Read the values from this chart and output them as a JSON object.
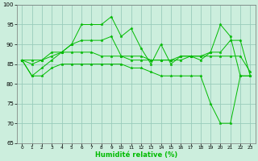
{
  "xlabel": "Humidité relative (%)",
  "background_color": "#cceedd",
  "grid_color": "#99ccbb",
  "line_color": "#00bb00",
  "x": [
    0,
    1,
    2,
    3,
    4,
    5,
    6,
    7,
    8,
    9,
    10,
    11,
    12,
    13,
    14,
    15,
    16,
    17,
    18,
    19,
    20,
    21,
    22,
    23
  ],
  "series": [
    [
      86,
      82,
      84,
      86,
      88,
      90,
      95,
      95,
      95,
      97,
      92,
      94,
      89,
      85,
      90,
      85,
      87,
      87,
      86,
      88,
      95,
      92,
      82,
      82
    ],
    [
      86,
      86,
      86,
      87,
      88,
      88,
      88,
      88,
      87,
      87,
      87,
      87,
      87,
      86,
      86,
      86,
      86,
      87,
      87,
      87,
      87,
      87,
      87,
      83
    ],
    [
      86,
      85,
      86,
      88,
      88,
      90,
      91,
      91,
      91,
      92,
      87,
      86,
      86,
      86,
      86,
      86,
      87,
      87,
      87,
      88,
      88,
      91,
      91,
      82
    ],
    [
      86,
      82,
      82,
      84,
      85,
      85,
      85,
      85,
      85,
      85,
      85,
      84,
      84,
      83,
      82,
      82,
      82,
      82,
      82,
      75,
      70,
      70,
      82,
      82
    ]
  ],
  "ylim": [
    65,
    100
  ],
  "xlim": [
    -0.5,
    23.5
  ],
  "yticks": [
    65,
    70,
    75,
    80,
    85,
    90,
    95,
    100
  ],
  "xticks": [
    0,
    1,
    2,
    3,
    4,
    5,
    6,
    7,
    8,
    9,
    10,
    11,
    12,
    13,
    14,
    15,
    16,
    17,
    18,
    19,
    20,
    21,
    22,
    23
  ],
  "figsize": [
    3.2,
    2.0
  ],
  "dpi": 100
}
